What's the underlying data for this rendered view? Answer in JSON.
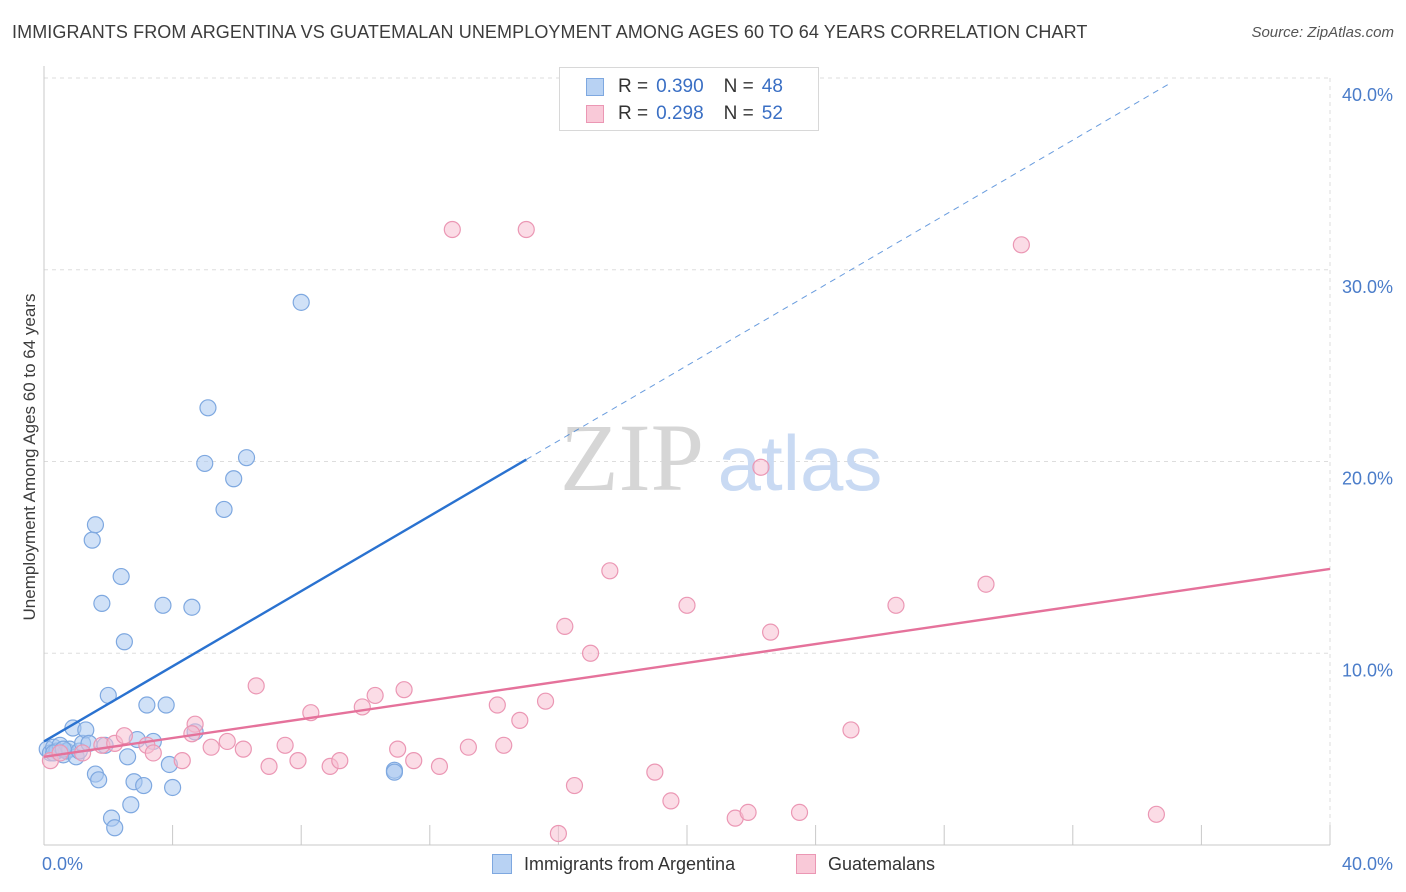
{
  "title": "IMMIGRANTS FROM ARGENTINA VS GUATEMALAN UNEMPLOYMENT AMONG AGES 60 TO 64 YEARS CORRELATION CHART",
  "source": "Source: ZipAtlas.com",
  "watermark": {
    "zip": "ZIP",
    "atlas": "atlas"
  },
  "colors": {
    "blue_fill": "#a9c8f0",
    "blue_stroke": "#7ea8e0",
    "blue_line": "#2a72d0",
    "pink_fill": "#f7bfd1",
    "pink_stroke": "#eb97b4",
    "pink_line": "#e5729b",
    "grid": "#dddddd",
    "tick_text": "#4a7cc9"
  },
  "legend": {
    "r_label": "R =",
    "n_label": "N =",
    "series": [
      {
        "r": "0.390",
        "n": "48"
      },
      {
        "r": "0.298",
        "n": "52"
      }
    ]
  },
  "chart_data": {
    "type": "scatter",
    "title": "IMMIGRANTS FROM ARGENTINA VS GUATEMALAN UNEMPLOYMENT AMONG AGES 60 TO 64 YEARS CORRELATION CHART",
    "xlabel": "",
    "ylabel": "Unemployment Among Ages 60 to 64 years",
    "xlim": [
      0,
      40
    ],
    "ylim": [
      0,
      40
    ],
    "x_tick_labels": [
      "0.0%",
      "40.0%"
    ],
    "y_ticks": [
      {
        "value": 10,
        "label": "10.0%"
      },
      {
        "value": 20,
        "label": "20.0%"
      },
      {
        "value": 30,
        "label": "30.0%"
      },
      {
        "value": 40,
        "label": "40.0%"
      }
    ],
    "grid": true,
    "legend_position": "bottom",
    "series": [
      {
        "name": "Immigrants from Argentina",
        "r": 0.39,
        "n": 48,
        "trend": {
          "x0": 0,
          "y0": 5.4,
          "x1": 15,
          "y1": 20.1,
          "dash_to_x": 35,
          "dash_to_y": 39.7
        },
        "points": [
          [
            0.1,
            5.0
          ],
          [
            0.2,
            4.8
          ],
          [
            0.3,
            5.1
          ],
          [
            0.4,
            4.9
          ],
          [
            0.5,
            5.2
          ],
          [
            0.6,
            4.7
          ],
          [
            0.7,
            4.9
          ],
          [
            0.8,
            5.0
          ],
          [
            0.9,
            6.1
          ],
          [
            1.0,
            4.6
          ],
          [
            1.1,
            4.9
          ],
          [
            1.2,
            5.3
          ],
          [
            1.3,
            6.0
          ],
          [
            1.4,
            5.3
          ],
          [
            1.5,
            15.9
          ],
          [
            1.6,
            16.7
          ],
          [
            1.6,
            3.7
          ],
          [
            1.7,
            3.4
          ],
          [
            1.8,
            12.6
          ],
          [
            2.0,
            7.8
          ],
          [
            2.1,
            1.4
          ],
          [
            2.2,
            0.9
          ],
          [
            2.4,
            14.0
          ],
          [
            2.5,
            10.6
          ],
          [
            2.6,
            4.6
          ],
          [
            2.7,
            2.1
          ],
          [
            2.8,
            3.3
          ],
          [
            2.9,
            5.5
          ],
          [
            3.1,
            3.1
          ],
          [
            3.2,
            7.3
          ],
          [
            3.4,
            5.4
          ],
          [
            3.7,
            12.5
          ],
          [
            3.8,
            7.3
          ],
          [
            3.9,
            4.2
          ],
          [
            4.0,
            3.0
          ],
          [
            4.6,
            12.4
          ],
          [
            4.7,
            5.9
          ],
          [
            5.0,
            19.9
          ],
          [
            5.1,
            22.8
          ],
          [
            5.6,
            17.5
          ],
          [
            5.9,
            19.1
          ],
          [
            6.3,
            20.2
          ],
          [
            8.0,
            28.3
          ],
          [
            10.9,
            3.9
          ],
          [
            10.9,
            3.8
          ],
          [
            0.3,
            4.8
          ],
          [
            0.6,
            5.0
          ],
          [
            1.9,
            5.2
          ]
        ]
      },
      {
        "name": "Guatemalans",
        "r": 0.298,
        "n": 52,
        "trend": {
          "x0": 0,
          "y0": 4.6,
          "x1": 40,
          "y1": 14.4
        },
        "points": [
          [
            0.2,
            4.4
          ],
          [
            0.5,
            4.8
          ],
          [
            1.2,
            4.8
          ],
          [
            1.8,
            5.2
          ],
          [
            2.2,
            5.3
          ],
          [
            2.5,
            5.7
          ],
          [
            3.2,
            5.2
          ],
          [
            3.4,
            4.8
          ],
          [
            4.3,
            4.4
          ],
          [
            4.7,
            6.3
          ],
          [
            4.6,
            5.8
          ],
          [
            5.2,
            5.1
          ],
          [
            5.7,
            5.4
          ],
          [
            6.2,
            5.0
          ],
          [
            6.6,
            8.3
          ],
          [
            7.0,
            4.1
          ],
          [
            7.5,
            5.2
          ],
          [
            7.9,
            4.4
          ],
          [
            8.3,
            6.9
          ],
          [
            8.9,
            4.1
          ],
          [
            9.2,
            4.4
          ],
          [
            9.9,
            7.2
          ],
          [
            10.3,
            7.8
          ],
          [
            11.0,
            5.0
          ],
          [
            11.2,
            8.1
          ],
          [
            11.5,
            4.4
          ],
          [
            12.3,
            4.1
          ],
          [
            12.7,
            32.1
          ],
          [
            13.2,
            5.1
          ],
          [
            14.1,
            7.3
          ],
          [
            14.3,
            5.2
          ],
          [
            14.8,
            6.5
          ],
          [
            15.0,
            32.1
          ],
          [
            15.6,
            7.5
          ],
          [
            16.0,
            0.6
          ],
          [
            16.2,
            11.4
          ],
          [
            16.5,
            3.1
          ],
          [
            17.0,
            10.0
          ],
          [
            17.6,
            14.3
          ],
          [
            19.0,
            3.8
          ],
          [
            19.5,
            2.3
          ],
          [
            20.0,
            12.5
          ],
          [
            21.5,
            1.4
          ],
          [
            21.9,
            1.7
          ],
          [
            22.3,
            19.7
          ],
          [
            22.6,
            11.1
          ],
          [
            23.5,
            1.7
          ],
          [
            25.1,
            6.0
          ],
          [
            26.5,
            12.5
          ],
          [
            29.3,
            13.6
          ],
          [
            30.4,
            31.3
          ],
          [
            34.6,
            1.6
          ]
        ]
      }
    ]
  }
}
